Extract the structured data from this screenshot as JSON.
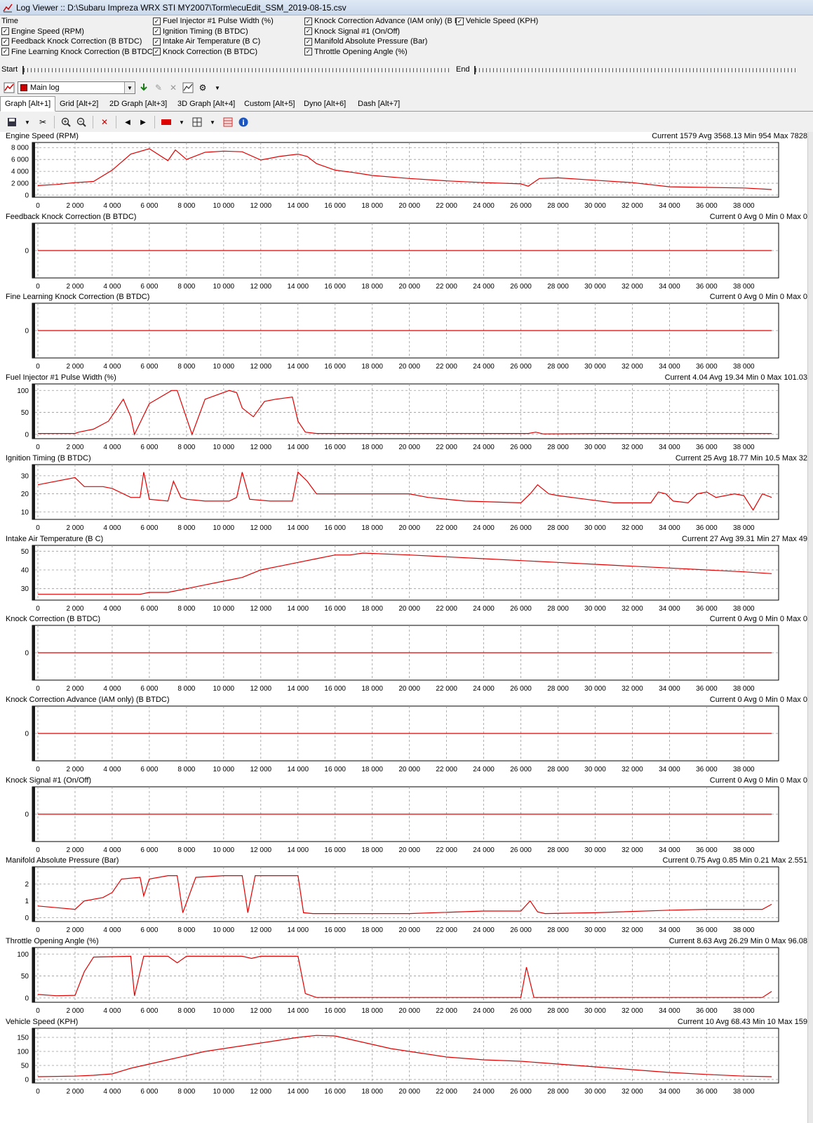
{
  "window": {
    "title": "Log Viewer :: D:\\Subaru Impreza WRX STI MY2007\\Torm\\ecuEdit_SSM_2019-08-15.csv"
  },
  "parameters": [
    {
      "label": "Time",
      "checked": false,
      "col": 0,
      "row": 0,
      "showBox": false
    },
    {
      "label": "Engine Speed (RPM)",
      "checked": true,
      "col": 0,
      "row": 1,
      "showBox": true
    },
    {
      "label": "Feedback Knock Correction (B BTDC)",
      "checked": true,
      "col": 0,
      "row": 2,
      "showBox": true
    },
    {
      "label": "Fine Learning Knock Correction (B BTDC)",
      "checked": true,
      "col": 0,
      "row": 3,
      "showBox": true
    },
    {
      "label": "Fuel Injector #1 Pulse Width (%)",
      "checked": true,
      "col": 1,
      "row": 0,
      "showBox": true
    },
    {
      "label": "Ignition Timing (B BTDC)",
      "checked": true,
      "col": 1,
      "row": 1,
      "showBox": true
    },
    {
      "label": "Intake Air Temperature (B C)",
      "checked": true,
      "col": 1,
      "row": 2,
      "showBox": true
    },
    {
      "label": "Knock Correction (B BTDC)",
      "checked": true,
      "col": 1,
      "row": 3,
      "showBox": true
    },
    {
      "label": "Knock Correction Advance (IAM only) (B BT",
      "checked": true,
      "col": 2,
      "row": 0,
      "showBox": true
    },
    {
      "label": "Knock Signal #1 (On/Off)",
      "checked": true,
      "col": 2,
      "row": 1,
      "showBox": true
    },
    {
      "label": "Manifold Absolute Pressure (Bar)",
      "checked": true,
      "col": 2,
      "row": 2,
      "showBox": true
    },
    {
      "label": "Throttle Opening Angle (%)",
      "checked": true,
      "col": 2,
      "row": 3,
      "showBox": true
    },
    {
      "label": "Vehicle Speed (KPH)",
      "checked": true,
      "col": 3,
      "row": 0,
      "showBox": true
    }
  ],
  "range": {
    "start_label": "Start",
    "end_label": "End"
  },
  "toolbar": {
    "log_select_value": "Main log"
  },
  "tabs": [
    {
      "label": "Graph [Alt+1]",
      "active": true
    },
    {
      "label": "Grid [Alt+2]",
      "active": false
    },
    {
      "label": "2D Graph [Alt+3]",
      "active": false
    },
    {
      "label": "3D Graph [Alt+4]",
      "active": false
    },
    {
      "label": "Custom [Alt+5]",
      "active": false
    },
    {
      "label": "Dyno [Alt+6]",
      "active": false
    },
    {
      "label": "Dash [Alt+7]",
      "active": false
    }
  ],
  "colors": {
    "trace": "#e00000",
    "grid": "#9a9a9a",
    "panel_bg": "#ffffff"
  },
  "chart_data": [
    {
      "type": "line",
      "title": "Engine Speed (RPM)",
      "stats": "Current 1579 Avg 3568.13 Min 954 Max 7828",
      "yticks": [
        0,
        2000,
        4000,
        6000,
        8000
      ],
      "ytick_labels": [
        "0",
        "2 000",
        "4 000",
        "6 000",
        "8 000"
      ],
      "ylim": [
        0,
        8500
      ],
      "x": [
        0,
        1000,
        2000,
        3000,
        4000,
        5000,
        6000,
        7000,
        7400,
        8000,
        9000,
        10000,
        11000,
        12000,
        13000,
        14000,
        14500,
        15000,
        16000,
        17000,
        18000,
        20000,
        22000,
        24000,
        26000,
        26400,
        27000,
        28000,
        30000,
        32000,
        34000,
        36000,
        38000,
        39500
      ],
      "y": [
        1600,
        1800,
        2100,
        2300,
        4200,
        6900,
        7800,
        5800,
        7600,
        6000,
        7200,
        7400,
        7300,
        5900,
        6500,
        6900,
        6500,
        5300,
        4200,
        3800,
        3300,
        2800,
        2400,
        2100,
        1900,
        1500,
        2800,
        2900,
        2500,
        2100,
        1400,
        1300,
        1200,
        950
      ]
    },
    {
      "type": "line",
      "title": "Feedback Knock Correction (B BTDC)",
      "stats": "Current 0 Avg 0 Min 0 Max 0",
      "yticks": [
        0
      ],
      "ytick_labels": [
        "0"
      ],
      "ylim": [
        -1,
        1
      ],
      "x": [
        0,
        39500
      ],
      "y": [
        0,
        0
      ]
    },
    {
      "type": "line",
      "title": "Fine Learning Knock Correction (B BTDC)",
      "stats": "Current 0 Avg 0 Min 0 Max 0",
      "yticks": [
        0
      ],
      "ytick_labels": [
        "0"
      ],
      "ylim": [
        -1,
        1
      ],
      "x": [
        0,
        39500
      ],
      "y": [
        0,
        0
      ]
    },
    {
      "type": "line",
      "title": "Fuel Injector #1 Pulse Width (%)",
      "stats": "Current 4.04 Avg 19.34 Min 0 Max 101.03",
      "yticks": [
        0,
        50,
        100
      ],
      "ytick_labels": [
        "0",
        "50",
        "100"
      ],
      "ylim": [
        -5,
        110
      ],
      "x": [
        0,
        2000,
        2200,
        3000,
        3800,
        4600,
        5000,
        5200,
        6000,
        7200,
        7500,
        7900,
        8300,
        9000,
        10300,
        10700,
        11000,
        11600,
        12200,
        12800,
        13700,
        14000,
        14400,
        15000,
        20000,
        26000,
        26400,
        26800,
        27200,
        30000,
        39500
      ],
      "y": [
        2,
        2,
        5,
        12,
        30,
        80,
        40,
        0,
        70,
        100,
        100,
        50,
        0,
        80,
        100,
        95,
        60,
        40,
        75,
        80,
        85,
        30,
        5,
        2,
        2,
        2,
        2,
        5,
        1,
        2,
        2
      ]
    },
    {
      "type": "line",
      "title": "Ignition Timing (B BTDC)",
      "stats": "Current 25 Avg 18.77 Min 10.5 Max 32",
      "yticks": [
        10,
        20,
        30
      ],
      "ytick_labels": [
        "10",
        "20",
        "30"
      ],
      "ylim": [
        7,
        35
      ],
      "x": [
        0,
        2000,
        2500,
        3500,
        4000,
        5000,
        5500,
        5700,
        6000,
        7000,
        7300,
        7700,
        8000,
        9000,
        10300,
        10700,
        11000,
        11400,
        12500,
        13700,
        14000,
        14500,
        15000,
        18000,
        20000,
        21000,
        23000,
        26000,
        26500,
        26900,
        27500,
        28000,
        29500,
        31000,
        32300,
        33000,
        33400,
        33800,
        34200,
        35000,
        35500,
        36000,
        36500,
        37500,
        38000,
        38500,
        39000,
        39500
      ],
      "y": [
        25,
        29,
        24,
        24,
        23,
        18,
        18,
        32,
        17,
        16,
        27,
        18,
        17,
        16,
        16,
        18,
        32,
        17,
        16,
        16,
        32,
        27,
        20,
        20,
        20,
        18,
        16,
        15,
        20,
        25,
        20,
        19,
        17,
        15,
        15,
        15,
        21,
        20,
        16,
        15,
        20,
        21,
        18,
        20,
        19,
        11,
        20,
        18
      ]
    },
    {
      "type": "line",
      "title": "Intake Air Temperature (B C)",
      "stats": "Current 27 Avg 39.31 Min 27 Max 49",
      "yticks": [
        30,
        40,
        50
      ],
      "ytick_labels": [
        "30",
        "40",
        "50"
      ],
      "ylim": [
        25,
        52
      ],
      "x": [
        0,
        3000,
        5000,
        5500,
        6000,
        7000,
        8000,
        9000,
        10000,
        11000,
        11500,
        12000,
        13000,
        14000,
        15000,
        16000,
        16800,
        17500,
        20000,
        22000,
        24000,
        26000,
        28000,
        30000,
        32000,
        34000,
        36000,
        38000,
        39500
      ],
      "y": [
        27,
        27,
        27,
        27,
        28,
        28,
        30,
        32,
        34,
        36,
        38,
        40,
        42,
        44,
        46,
        48,
        48,
        49,
        48,
        47,
        46,
        45,
        44,
        43,
        42,
        41,
        40,
        39,
        38
      ]
    },
    {
      "type": "line",
      "title": "Knock Correction (B BTDC)",
      "stats": "Current 0 Avg 0 Min 0 Max 0",
      "yticks": [
        0
      ],
      "ytick_labels": [
        "0"
      ],
      "ylim": [
        -1,
        1
      ],
      "x": [
        0,
        39500
      ],
      "y": [
        0,
        0
      ]
    },
    {
      "type": "line",
      "title": "Knock Correction Advance (IAM only) (B BTDC)",
      "stats": "Current 0 Avg 0 Min 0 Max 0",
      "yticks": [
        0
      ],
      "ytick_labels": [
        "0"
      ],
      "ylim": [
        -1,
        1
      ],
      "x": [
        0,
        39500
      ],
      "y": [
        0,
        0
      ]
    },
    {
      "type": "line",
      "title": "Knock Signal #1 (On/Off)",
      "stats": "Current 0 Avg 0 Min 0 Max 0",
      "yticks": [
        0
      ],
      "ytick_labels": [
        "0"
      ],
      "ylim": [
        -1,
        1
      ],
      "x": [
        0,
        39500
      ],
      "y": [
        0,
        0
      ]
    },
    {
      "type": "line",
      "title": "Manifold Absolute Pressure (Bar)",
      "stats": "Current 0.75 Avg 0.85 Min 0.21 Max 2.551",
      "yticks": [
        0,
        1,
        2
      ],
      "ytick_labels": [
        "0",
        "1",
        "2"
      ],
      "ylim": [
        -0.1,
        2.9
      ],
      "x": [
        0,
        1000,
        2000,
        2500,
        3500,
        4000,
        4500,
        5500,
        5700,
        6000,
        7000,
        7500,
        7800,
        8500,
        10000,
        11000,
        11300,
        11700,
        12500,
        14000,
        14300,
        14800,
        18000,
        20000,
        24000,
        26000,
        26500,
        26900,
        27300,
        30000,
        34000,
        36000,
        39000,
        39500
      ],
      "y": [
        0.7,
        0.6,
        0.5,
        1.0,
        1.2,
        1.5,
        2.3,
        2.4,
        1.3,
        2.3,
        2.5,
        2.5,
        0.3,
        2.4,
        2.5,
        2.5,
        0.3,
        2.5,
        2.5,
        2.5,
        0.3,
        0.25,
        0.25,
        0.25,
        0.4,
        0.4,
        1.0,
        0.35,
        0.25,
        0.3,
        0.45,
        0.5,
        0.5,
        0.8
      ]
    },
    {
      "type": "line",
      "title": "Throttle Opening Angle (%)",
      "stats": "Current 8.63 Avg 26.29 Min 0 Max 96.08",
      "yticks": [
        0,
        50,
        100
      ],
      "ytick_labels": [
        "0",
        "50",
        "100"
      ],
      "ylim": [
        -5,
        110
      ],
      "x": [
        0,
        1000,
        2000,
        2500,
        3000,
        5000,
        5200,
        5700,
        6000,
        7000,
        7500,
        8000,
        9000,
        11000,
        11500,
        12000,
        13000,
        14000,
        14400,
        15000,
        26000,
        26300,
        26700,
        27000,
        30000,
        39000,
        39500
      ],
      "y": [
        8,
        5,
        6,
        60,
        93,
        95,
        5,
        95,
        95,
        95,
        80,
        95,
        95,
        95,
        90,
        95,
        95,
        95,
        10,
        1,
        1,
        70,
        1,
        1,
        1,
        1,
        15
      ]
    },
    {
      "type": "line",
      "title": "Vehicle Speed (KPH)",
      "stats": "Current 10 Avg 68.43 Min 10 Max 159",
      "yticks": [
        0,
        50,
        100,
        150
      ],
      "ytick_labels": [
        "0",
        "50",
        "100",
        "150"
      ],
      "ylim": [
        -5,
        175
      ],
      "x": [
        0,
        2000,
        3000,
        4000,
        5000,
        6000,
        7000,
        8000,
        9000,
        10000,
        11000,
        12000,
        13000,
        14000,
        15000,
        16000,
        17000,
        18000,
        19000,
        20000,
        22000,
        24000,
        26000,
        28000,
        30000,
        32000,
        34000,
        36000,
        38000,
        39500
      ],
      "y": [
        10,
        12,
        15,
        20,
        40,
        55,
        70,
        85,
        100,
        110,
        120,
        130,
        140,
        150,
        157,
        155,
        140,
        125,
        110,
        100,
        80,
        70,
        65,
        55,
        45,
        35,
        25,
        18,
        12,
        10
      ]
    }
  ],
  "x_axis": {
    "ticks": [
      0,
      2000,
      4000,
      6000,
      8000,
      10000,
      12000,
      14000,
      16000,
      18000,
      20000,
      22000,
      24000,
      26000,
      28000,
      30000,
      32000,
      34000,
      36000,
      38000
    ],
    "tick_labels": [
      "0",
      "2 000",
      "4 000",
      "6 000",
      "8 000",
      "10 000",
      "12 000",
      "14 000",
      "16 000",
      "18 000",
      "20 000",
      "22 000",
      "24 000",
      "26 000",
      "28 000",
      "30 000",
      "32 000",
      "34 000",
      "36 000",
      "38 000"
    ],
    "xlim": [
      0,
      39800
    ]
  }
}
